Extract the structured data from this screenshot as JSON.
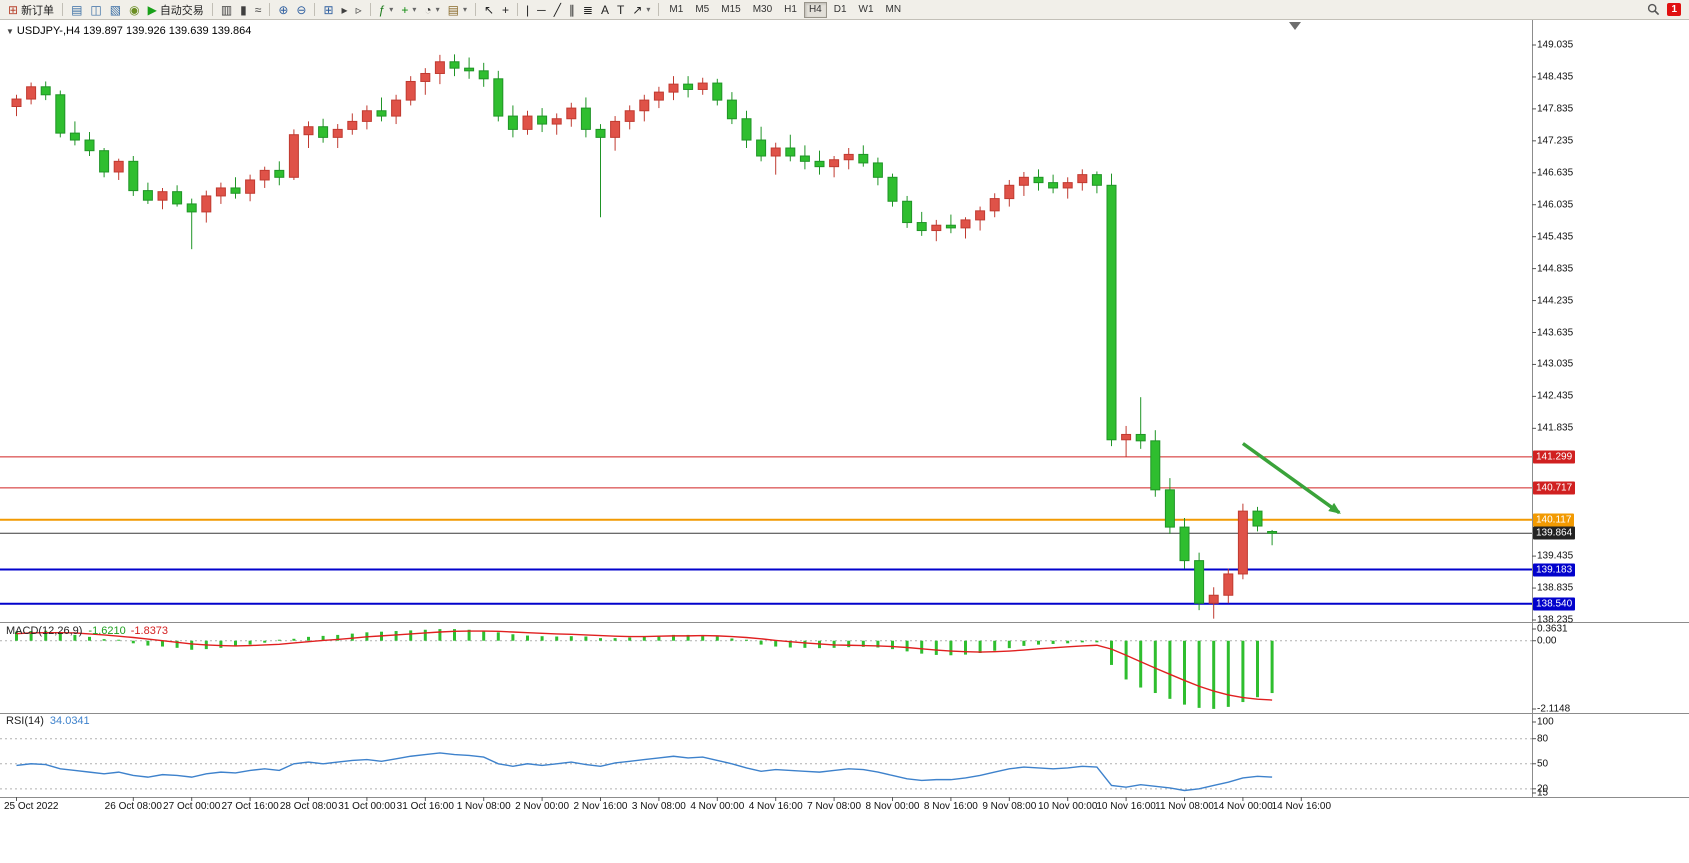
{
  "toolbar": {
    "items": [
      {
        "type": "button",
        "name": "new-order-button",
        "glyph": "⊞",
        "glyph_color": "#b8442f",
        "label": "新订单"
      },
      {
        "type": "sep"
      },
      {
        "type": "button",
        "name": "chart-window-button",
        "glyph": "▤",
        "glyph_color": "#3a6ea5"
      },
      {
        "type": "button",
        "name": "profile-button",
        "glyph": "◫",
        "glyph_color": "#3a6ea5"
      },
      {
        "type": "button",
        "name": "navigator-button",
        "glyph": "▧",
        "glyph_color": "#3a6ea5"
      },
      {
        "type": "button",
        "name": "alerts-button",
        "glyph": "◉",
        "glyph_color": "#6b8e23"
      },
      {
        "type": "button",
        "name": "autotrading-button",
        "glyph": "▶",
        "glyph_color": "#18a018",
        "label": "自动交易"
      },
      {
        "type": "sep"
      },
      {
        "type": "button",
        "name": "bar-chart-button",
        "glyph": "▥",
        "glyph_color": "#3f3f3f"
      },
      {
        "type": "button",
        "name": "candlestick-chart-button",
        "glyph": "▮",
        "glyph_color": "#3f3f3f"
      },
      {
        "type": "button",
        "name": "line-chart-button",
        "glyph": "≈",
        "glyph_color": "#3f3f3f"
      },
      {
        "type": "sep"
      },
      {
        "type": "button",
        "name": "zoom-in-button",
        "glyph": "⊕",
        "glyph_color": "#2f5fa0"
      },
      {
        "type": "button",
        "name": "zoom-out-button",
        "glyph": "⊖",
        "glyph_color": "#2f5fa0"
      },
      {
        "type": "sep"
      },
      {
        "type": "button",
        "name": "tile-windows-button",
        "glyph": "⊞",
        "glyph_color": "#2f5fa0"
      },
      {
        "type": "button",
        "name": "auto-scroll-button",
        "glyph": "▸",
        "glyph_color": "#3f3f3f"
      },
      {
        "type": "button",
        "name": "chart-shift-button",
        "glyph": "▹",
        "glyph_color": "#3f3f3f"
      },
      {
        "type": "sep"
      },
      {
        "type": "button",
        "name": "indicators-button",
        "glyph": "ƒ",
        "glyph_color": "#1a7a1a",
        "dropdown": true
      },
      {
        "type": "button",
        "name": "add-indicator-button",
        "glyph": "+",
        "glyph_color": "#0a8a0a",
        "dropdown": true
      },
      {
        "type": "button",
        "name": "periods-button",
        "glyph": "◔",
        "glyph_color": "#3f3f3f",
        "dropdown": true
      },
      {
        "type": "button",
        "name": "templates-button",
        "glyph": "▤",
        "glyph_color": "#8a6a2a",
        "dropdown": true
      },
      {
        "type": "sep"
      },
      {
        "type": "button",
        "name": "cursor-button",
        "glyph": "↖",
        "glyph_color": "#222222"
      },
      {
        "type": "button",
        "name": "crosshair-button",
        "glyph": "+",
        "glyph_color": "#222222"
      },
      {
        "type": "sep"
      },
      {
        "type": "button",
        "name": "vertical-line-button",
        "glyph": "|",
        "glyph_color": "#222222"
      },
      {
        "type": "button",
        "name": "horizontal-line-button",
        "glyph": "─",
        "glyph_color": "#222222"
      },
      {
        "type": "button",
        "name": "trendline-button",
        "glyph": "╱",
        "glyph_color": "#222222"
      },
      {
        "type": "button",
        "name": "channel-button",
        "glyph": "∥",
        "glyph_color": "#222222"
      },
      {
        "type": "button",
        "name": "fibonacci-button",
        "glyph": "≣",
        "glyph_color": "#222222"
      },
      {
        "type": "button",
        "name": "text-button",
        "glyph": "A",
        "glyph_color": "#222222"
      },
      {
        "type": "button",
        "name": "text-label-button",
        "glyph": "T",
        "glyph_color": "#222222"
      },
      {
        "type": "button",
        "name": "arrows-button",
        "glyph": "↗",
        "glyph_color": "#222222",
        "dropdown": true
      },
      {
        "type": "sep"
      }
    ],
    "timeframes": [
      "M1",
      "M5",
      "M15",
      "M30",
      "H1",
      "H4",
      "D1",
      "W1",
      "MN"
    ],
    "active_timeframe": "H4",
    "notification_badge": "1"
  },
  "chart": {
    "symbol_label": "USDJPY-,H4",
    "ohlc": "139.897 139.926 139.639 139.864"
  },
  "indicators": {
    "macd": {
      "name": "MACD(12,26,9)",
      "value": "-1.6210",
      "signal": "-1.8373",
      "scale_labels": [
        "0.3631",
        "0.00",
        "-2.1148"
      ]
    },
    "rsi": {
      "name": "RSI(14)",
      "value": "34.0341",
      "scale_labels": [
        "100",
        "80",
        "50",
        "20",
        "15"
      ]
    }
  },
  "colors": {
    "up_candle": "#df5248",
    "up_stroke": "#c03a30",
    "down_candle": "#2fbe2f",
    "down_stroke": "#1f9426",
    "macd_histogram": "#2fbe2f",
    "macd_signal": "#e02020",
    "rsi_line": "#3e82cc",
    "level_dash": "#b0b0b0",
    "arrow": "#3aa33a",
    "axis_line": "#8c8c8c",
    "current_price": "#3a3a3a"
  },
  "chart_data": {
    "type": "candlestick",
    "symbol": "USDJPY",
    "timeframe": "H4",
    "price_axis": {
      "min": 138.235,
      "max": 149.035,
      "labels": [
        "149.035",
        "148.435",
        "147.835",
        "147.235",
        "146.635",
        "146.035",
        "145.435",
        "144.835",
        "144.235",
        "143.635",
        "143.035",
        "142.435",
        "141.835",
        "139.435",
        "138.835",
        "138.235"
      ]
    },
    "candles": [
      [
        147.88,
        148.1,
        147.7,
        148.02
      ],
      [
        148.02,
        148.33,
        147.92,
        148.25
      ],
      [
        148.25,
        148.35,
        148.0,
        148.1
      ],
      [
        148.1,
        148.18,
        147.3,
        147.38
      ],
      [
        147.38,
        147.6,
        147.15,
        147.25
      ],
      [
        147.25,
        147.4,
        146.95,
        147.05
      ],
      [
        147.05,
        147.1,
        146.55,
        146.65
      ],
      [
        146.65,
        146.9,
        146.5,
        146.85
      ],
      [
        146.85,
        146.95,
        146.2,
        146.3
      ],
      [
        146.3,
        146.45,
        146.05,
        146.12
      ],
      [
        146.12,
        146.35,
        145.95,
        146.28
      ],
      [
        146.28,
        146.4,
        146.0,
        146.05
      ],
      [
        146.05,
        146.15,
        145.2,
        145.9
      ],
      [
        145.9,
        146.3,
        145.7,
        146.2
      ],
      [
        146.2,
        146.45,
        146.05,
        146.35
      ],
      [
        146.35,
        146.55,
        146.15,
        146.25
      ],
      [
        146.25,
        146.6,
        146.1,
        146.5
      ],
      [
        146.5,
        146.75,
        146.35,
        146.68
      ],
      [
        146.68,
        146.85,
        146.4,
        146.55
      ],
      [
        146.55,
        147.45,
        146.5,
        147.35
      ],
      [
        147.35,
        147.6,
        147.1,
        147.5
      ],
      [
        147.5,
        147.65,
        147.2,
        147.3
      ],
      [
        147.3,
        147.55,
        147.1,
        147.45
      ],
      [
        147.45,
        147.75,
        147.35,
        147.6
      ],
      [
        147.6,
        147.9,
        147.45,
        147.8
      ],
      [
        147.8,
        148.05,
        147.6,
        147.7
      ],
      [
        147.7,
        148.1,
        147.55,
        148.0
      ],
      [
        148.0,
        148.45,
        147.9,
        148.35
      ],
      [
        148.35,
        148.6,
        148.1,
        148.5
      ],
      [
        148.5,
        148.85,
        148.3,
        148.72
      ],
      [
        148.72,
        148.86,
        148.45,
        148.6
      ],
      [
        148.6,
        148.8,
        148.4,
        148.55
      ],
      [
        148.55,
        148.7,
        148.25,
        148.4
      ],
      [
        148.4,
        148.55,
        147.6,
        147.7
      ],
      [
        147.7,
        147.9,
        147.3,
        147.45
      ],
      [
        147.45,
        147.8,
        147.35,
        147.7
      ],
      [
        147.7,
        147.85,
        147.4,
        147.55
      ],
      [
        147.55,
        147.75,
        147.35,
        147.65
      ],
      [
        147.65,
        147.95,
        147.5,
        147.85
      ],
      [
        147.85,
        148.05,
        147.3,
        147.45
      ],
      [
        147.45,
        147.55,
        145.8,
        147.3
      ],
      [
        147.3,
        147.7,
        147.05,
        147.6
      ],
      [
        147.6,
        147.9,
        147.45,
        147.8
      ],
      [
        147.8,
        148.1,
        147.6,
        148.0
      ],
      [
        148.0,
        148.25,
        147.85,
        148.15
      ],
      [
        148.15,
        148.45,
        148.0,
        148.3
      ],
      [
        148.3,
        148.45,
        148.05,
        148.2
      ],
      [
        148.2,
        148.42,
        148.1,
        148.32
      ],
      [
        148.32,
        148.4,
        147.9,
        148.0
      ],
      [
        148.0,
        148.15,
        147.55,
        147.65
      ],
      [
        147.65,
        147.8,
        147.1,
        147.25
      ],
      [
        147.25,
        147.5,
        146.85,
        146.95
      ],
      [
        146.95,
        147.2,
        146.6,
        147.1
      ],
      [
        147.1,
        147.35,
        146.85,
        146.95
      ],
      [
        146.95,
        147.15,
        146.7,
        146.85
      ],
      [
        146.85,
        147.05,
        146.6,
        146.75
      ],
      [
        146.75,
        146.95,
        146.55,
        146.88
      ],
      [
        146.88,
        147.1,
        146.7,
        146.98
      ],
      [
        146.98,
        147.15,
        146.75,
        146.82
      ],
      [
        146.82,
        146.92,
        146.4,
        146.55
      ],
      [
        146.55,
        146.62,
        146.0,
        146.1
      ],
      [
        146.1,
        146.2,
        145.6,
        145.7
      ],
      [
        145.7,
        145.9,
        145.45,
        145.55
      ],
      [
        145.55,
        145.75,
        145.35,
        145.65
      ],
      [
        145.65,
        145.85,
        145.5,
        145.6
      ],
      [
        145.6,
        145.8,
        145.4,
        145.75
      ],
      [
        145.75,
        146.0,
        145.55,
        145.92
      ],
      [
        145.92,
        146.25,
        145.8,
        146.15
      ],
      [
        146.15,
        146.5,
        146.0,
        146.4
      ],
      [
        146.4,
        146.65,
        146.2,
        146.55
      ],
      [
        146.55,
        146.7,
        146.3,
        146.45
      ],
      [
        146.45,
        146.6,
        146.25,
        146.35
      ],
      [
        146.35,
        146.55,
        146.15,
        146.45
      ],
      [
        146.45,
        146.7,
        146.3,
        146.6
      ],
      [
        146.6,
        146.66,
        146.25,
        146.4
      ],
      [
        146.4,
        146.62,
        141.5,
        141.62
      ],
      [
        141.62,
        141.88,
        141.3,
        141.72
      ],
      [
        141.72,
        142.42,
        141.45,
        141.6
      ],
      [
        141.6,
        141.8,
        140.55,
        140.68
      ],
      [
        140.68,
        140.9,
        139.85,
        139.98
      ],
      [
        139.98,
        140.15,
        139.2,
        139.35
      ],
      [
        139.35,
        139.5,
        138.42,
        138.55
      ],
      [
        138.55,
        138.85,
        138.26,
        138.7
      ],
      [
        138.7,
        139.2,
        138.55,
        139.1
      ],
      [
        139.1,
        140.42,
        139.0,
        140.28
      ],
      [
        140.28,
        140.36,
        139.9,
        140.0
      ],
      [
        139.897,
        139.926,
        139.639,
        139.864
      ]
    ],
    "time_labels": [
      {
        "i": 0,
        "label": "25 Oct 2022"
      },
      {
        "i": 8,
        "label": "26 Oct 08:00"
      },
      {
        "i": 12,
        "label": "27 Oct 00:00"
      },
      {
        "i": 16,
        "label": "27 Oct 16:00"
      },
      {
        "i": 20,
        "label": "28 Oct 08:00"
      },
      {
        "i": 24,
        "label": "31 Oct 00:00"
      },
      {
        "i": 28,
        "label": "31 Oct 16:00"
      },
      {
        "i": 32,
        "label": "1 Nov 08:00"
      },
      {
        "i": 36,
        "label": "2 Nov 00:00"
      },
      {
        "i": 40,
        "label": "2 Nov 16:00"
      },
      {
        "i": 44,
        "label": "3 Nov 08:00"
      },
      {
        "i": 48,
        "label": "4 Nov 00:00"
      },
      {
        "i": 52,
        "label": "4 Nov 16:00"
      },
      {
        "i": 56,
        "label": "7 Nov 08:00"
      },
      {
        "i": 60,
        "label": "8 Nov 00:00"
      },
      {
        "i": 64,
        "label": "8 Nov 16:00"
      },
      {
        "i": 68,
        "label": "9 Nov 08:00"
      },
      {
        "i": 72,
        "label": "10 Nov 00:00"
      },
      {
        "i": 76,
        "label": "10 Nov 16:00"
      },
      {
        "i": 80,
        "label": "11 Nov 08:00"
      },
      {
        "i": 84,
        "label": "14 Nov 00:00"
      },
      {
        "i": 88,
        "label": "14 Nov 16:00"
      }
    ],
    "hlines": [
      {
        "price": 141.299,
        "label": "141.299",
        "color": "#d02020",
        "width": 1
      },
      {
        "price": 140.717,
        "label": "140.717",
        "color": "#d02020",
        "width": 1
      },
      {
        "price": 140.117,
        "label": "140.117",
        "color": "#f29a02",
        "width": 2
      },
      {
        "price": 139.864,
        "label": "139.864",
        "color": "#3a3a3a",
        "width": 1,
        "role": "current-price"
      },
      {
        "price": 139.183,
        "label": "139.183",
        "color": "#0202cc",
        "width": 2
      },
      {
        "price": 138.54,
        "label": "138.540",
        "color": "#0202cc",
        "width": 2
      }
    ],
    "macd": {
      "scale_max": 0.3631,
      "scale_min": -2.1148,
      "histogram": [
        0.28,
        0.3,
        0.31,
        0.25,
        0.18,
        0.12,
        0.05,
        0.0,
        -0.08,
        -0.15,
        -0.18,
        -0.22,
        -0.28,
        -0.26,
        -0.22,
        -0.18,
        -0.12,
        -0.06,
        -0.02,
        0.06,
        0.12,
        0.15,
        0.18,
        0.22,
        0.26,
        0.28,
        0.3,
        0.32,
        0.34,
        0.36,
        0.36,
        0.34,
        0.31,
        0.26,
        0.2,
        0.16,
        0.14,
        0.13,
        0.14,
        0.13,
        0.08,
        0.08,
        0.1,
        0.13,
        0.16,
        0.18,
        0.18,
        0.17,
        0.13,
        0.07,
        -0.02,
        -0.12,
        -0.18,
        -0.21,
        -0.22,
        -0.23,
        -0.22,
        -0.2,
        -0.19,
        -0.21,
        -0.26,
        -0.33,
        -0.4,
        -0.44,
        -0.45,
        -0.43,
        -0.38,
        -0.31,
        -0.23,
        -0.16,
        -0.12,
        -0.1,
        -0.08,
        -0.05,
        -0.05,
        -0.75,
        -1.2,
        -1.45,
        -1.62,
        -1.8,
        -1.98,
        -2.08,
        -2.11,
        -2.05,
        -1.9,
        -1.75,
        -1.621
      ],
      "signal": [
        0.22,
        0.24,
        0.25,
        0.25,
        0.24,
        0.21,
        0.18,
        0.14,
        0.1,
        0.05,
        0.0,
        -0.05,
        -0.1,
        -0.13,
        -0.15,
        -0.16,
        -0.15,
        -0.13,
        -0.11,
        -0.07,
        -0.03,
        0.01,
        0.04,
        0.08,
        0.12,
        0.15,
        0.18,
        0.21,
        0.24,
        0.27,
        0.29,
        0.3,
        0.3,
        0.29,
        0.27,
        0.25,
        0.23,
        0.21,
        0.2,
        0.18,
        0.16,
        0.14,
        0.13,
        0.13,
        0.14,
        0.15,
        0.15,
        0.16,
        0.15,
        0.13,
        0.1,
        0.06,
        0.01,
        -0.03,
        -0.07,
        -0.1,
        -0.13,
        -0.14,
        -0.15,
        -0.16,
        -0.18,
        -0.21,
        -0.25,
        -0.29,
        -0.32,
        -0.34,
        -0.35,
        -0.34,
        -0.32,
        -0.29,
        -0.25,
        -0.22,
        -0.19,
        -0.16,
        -0.14,
        -0.26,
        -0.45,
        -0.65,
        -0.85,
        -1.04,
        -1.23,
        -1.41,
        -1.56,
        -1.68,
        -1.76,
        -1.81,
        -1.8373
      ]
    },
    "rsi": {
      "scale_max": 100,
      "scale_min": 15,
      "levels": [
        80,
        50,
        20
      ],
      "values": [
        48,
        50,
        49,
        44,
        42,
        40,
        38,
        40,
        36,
        34,
        37,
        36,
        34,
        38,
        40,
        39,
        42,
        44,
        42,
        50,
        52,
        50,
        52,
        54,
        55,
        53,
        56,
        59,
        61,
        63,
        61,
        60,
        58,
        50,
        47,
        50,
        48,
        50,
        52,
        49,
        47,
        51,
        53,
        55,
        57,
        59,
        57,
        58,
        54,
        50,
        45,
        41,
        43,
        42,
        41,
        40,
        42,
        44,
        43,
        40,
        36,
        32,
        30,
        31,
        31,
        33,
        36,
        40,
        44,
        46,
        45,
        44,
        45,
        47,
        46,
        24,
        22,
        25,
        23,
        21,
        18,
        20,
        24,
        28,
        33,
        35,
        34.03
      ]
    },
    "arrow": {
      "from_index": 84.0,
      "from_price": 141.55,
      "to_index": 90.6,
      "to_price": 140.25
    }
  }
}
